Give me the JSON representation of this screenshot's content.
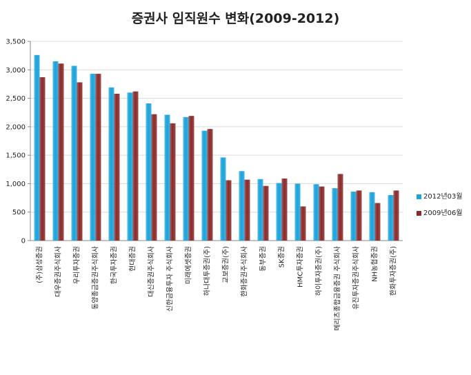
{
  "chart_data": {
    "type": "bar",
    "title": "증권사 임직원수 변화(2009-2012)",
    "categories": [
      "(주)삼성증권",
      "대우증권주식회사",
      "우리투자증권",
      "동양종금증권주식회사",
      "한국투자증권",
      "현대증권",
      "대신증권주식회사",
      "신한금융투자 주식회사",
      "미래에셋증권",
      "하나대투증권(주)",
      "교보증권(주)",
      "한화증권주식회사",
      "동부증권",
      "SK증권",
      "HMC투자증권",
      "하이투자증권(주)",
      "메리츠종합금융증권 주식회사",
      "유진투자증권주식회사",
      "NH농협증권",
      "한화투자증권(주)"
    ],
    "series": [
      {
        "name": "2012년03월",
        "color": "#1BA3DB",
        "values": [
          3260,
          3150,
          3070,
          2930,
          2690,
          2600,
          2410,
          2210,
          2170,
          1930,
          1460,
          1220,
          1080,
          1010,
          1000,
          990,
          920,
          860,
          850,
          800
        ]
      },
      {
        "name": "2009년06월",
        "color": "#8B2A2A",
        "values": [
          2870,
          3110,
          2780,
          2930,
          2580,
          2620,
          2220,
          2060,
          2190,
          1960,
          1060,
          1070,
          960,
          1090,
          600,
          950,
          1170,
          880,
          660,
          880
        ]
      }
    ],
    "y_ticks": [
      "0",
      "500",
      "1,000",
      "1,500",
      "2,000",
      "2,500",
      "3,000",
      "3,500"
    ],
    "ylim": [
      0,
      3500
    ],
    "legend_position": "right"
  }
}
